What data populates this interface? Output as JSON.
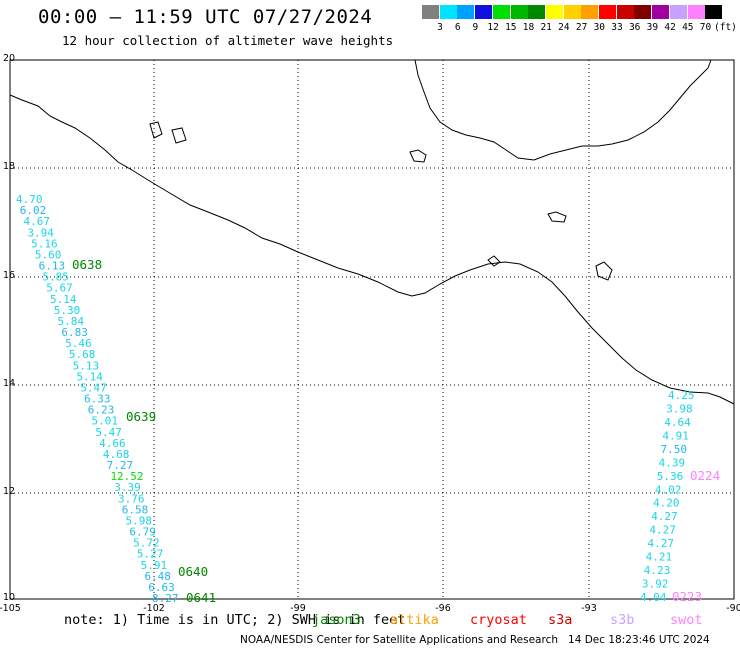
{
  "header": {
    "title": "00:00 — 11:59 UTC 07/27/2024",
    "subtitle": "12 hour collection of altimeter wave heights"
  },
  "legend": {
    "unit": "(ft)",
    "items": [
      {
        "label": "3",
        "color": "#808080"
      },
      {
        "label": "6",
        "color": "#00e5ff"
      },
      {
        "label": "9",
        "color": "#00a0ff"
      },
      {
        "label": "12",
        "color": "#1010e0"
      },
      {
        "label": "15",
        "color": "#00e000"
      },
      {
        "label": "18",
        "color": "#00b800"
      },
      {
        "label": "21",
        "color": "#008800"
      },
      {
        "label": "24",
        "color": "#ffff00"
      },
      {
        "label": "27",
        "color": "#ffd000"
      },
      {
        "label": "30",
        "color": "#ffa000"
      },
      {
        "label": "33",
        "color": "#ff0000"
      },
      {
        "label": "36",
        "color": "#c80000"
      },
      {
        "label": "39",
        "color": "#800000"
      },
      {
        "label": "42",
        "color": "#a000a0"
      },
      {
        "label": "45",
        "color": "#c8a0ff"
      },
      {
        "label": "70",
        "color": "#ff80ff"
      },
      {
        "label": "",
        "color": "#000000"
      }
    ]
  },
  "axes": {
    "lon_labels": [
      "-105",
      "-102",
      "-99",
      "-96",
      "-93",
      "-90"
    ],
    "lat_labels": [
      "20",
      "18",
      "16",
      "14",
      "12",
      "10"
    ]
  },
  "tracks": {
    "west": {
      "values": [
        "4.70",
        "6.02",
        "4.67",
        "3.94",
        "5.16",
        "5.60",
        "6.13",
        "5.85",
        "5.67",
        "5.14",
        "5.30",
        "5.84",
        "6.83",
        "5.46",
        "5.68",
        "5.13",
        "5.14",
        "5.47",
        "6.33",
        "6.23",
        "5.01",
        "5.47",
        "4.66",
        "4.68",
        "7.27",
        "12.52",
        "3.39",
        "3.76",
        "6.58",
        "5.98",
        "6.79",
        "5.72",
        "5.27",
        "5.91",
        "6.48",
        "6.63",
        "8.27"
      ],
      "times": [
        "0638",
        "0639",
        "0640",
        "0641"
      ]
    },
    "east": {
      "values": [
        "4.25",
        "3.98",
        "4.64",
        "4.91",
        "7.50",
        "4.39",
        "5.36",
        "4.02",
        "4.20",
        "4.27",
        "4.27",
        "4.27",
        "4.21",
        "4.23",
        "3.92",
        "4.04"
      ],
      "times": [
        "0224",
        "0223"
      ]
    }
  },
  "note": {
    "text": "note: 1) Time is in UTC; 2) SWH is in feet",
    "satellites": [
      {
        "name": "jason3",
        "color": "#008800"
      },
      {
        "name": "altika",
        "color": "#ffa000"
      },
      {
        "name": "cryosat",
        "color": "#ff0000"
      },
      {
        "name": "s3a",
        "color": "#c80000"
      },
      {
        "name": "s3b",
        "color": "#c8a0ff"
      },
      {
        "name": "swot",
        "color": "#ff80ff"
      }
    ]
  },
  "credit": "NOAA/NESDIS Center for Satellite Applications and Research   14 Dec 18:23:46 UTC 2024"
}
